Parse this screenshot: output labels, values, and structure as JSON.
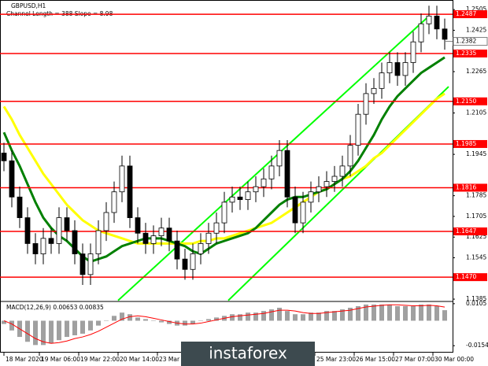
{
  "chart_data": [
    {
      "type": "candlestick",
      "title": "GBPUSD,H1",
      "subtitle": "Channel Length = 388 Slope = 8.98",
      "open": [
        1.195,
        1.192,
        1.178,
        1.17,
        1.16,
        1.156,
        1.162,
        1.16,
        1.17,
        1.165,
        1.156,
        1.148,
        1.156,
        1.165,
        1.172,
        1.18,
        1.19,
        1.17,
        1.164,
        1.16,
        1.163,
        1.166,
        1.161,
        1.154,
        1.15,
        1.156,
        1.16,
        1.164,
        1.168,
        1.176,
        1.178,
        1.177,
        1.18,
        1.182,
        1.185,
        1.19,
        1.196,
        1.178,
        1.168,
        1.176,
        1.18,
        1.182,
        1.184,
        1.186,
        1.19,
        1.198,
        1.21,
        1.218,
        1.22,
        1.226,
        1.23,
        1.225,
        1.23,
        1.238,
        1.245,
        1.248,
        1.243
      ],
      "high": [
        1.199,
        1.196,
        1.182,
        1.174,
        1.164,
        1.166,
        1.166,
        1.174,
        1.174,
        1.169,
        1.16,
        1.16,
        1.169,
        1.176,
        1.184,
        1.194,
        1.194,
        1.174,
        1.168,
        1.167,
        1.17,
        1.17,
        1.165,
        1.158,
        1.16,
        1.164,
        1.168,
        1.172,
        1.18,
        1.182,
        1.182,
        1.184,
        1.186,
        1.189,
        1.194,
        1.2,
        1.2,
        1.182,
        1.18,
        1.184,
        1.186,
        1.188,
        1.19,
        1.194,
        1.202,
        1.214,
        1.222,
        1.224,
        1.23,
        1.234,
        1.234,
        1.234,
        1.242,
        1.249,
        1.252,
        1.252,
        1.247
      ],
      "low": [
        1.188,
        1.174,
        1.166,
        1.156,
        1.152,
        1.152,
        1.156,
        1.156,
        1.161,
        1.152,
        1.144,
        1.144,
        1.152,
        1.161,
        1.168,
        1.176,
        1.166,
        1.16,
        1.156,
        1.156,
        1.159,
        1.157,
        1.15,
        1.146,
        1.146,
        1.152,
        1.156,
        1.16,
        1.164,
        1.172,
        1.173,
        1.173,
        1.176,
        1.178,
        1.181,
        1.186,
        1.174,
        1.164,
        1.164,
        1.172,
        1.176,
        1.178,
        1.18,
        1.182,
        1.186,
        1.194,
        1.206,
        1.214,
        1.216,
        1.222,
        1.221,
        1.221,
        1.226,
        1.234,
        1.241,
        1.239,
        1.235
      ],
      "close": [
        1.192,
        1.178,
        1.17,
        1.16,
        1.156,
        1.162,
        1.16,
        1.17,
        1.165,
        1.156,
        1.148,
        1.156,
        1.165,
        1.172,
        1.18,
        1.19,
        1.17,
        1.164,
        1.16,
        1.163,
        1.166,
        1.161,
        1.154,
        1.15,
        1.156,
        1.16,
        1.164,
        1.168,
        1.176,
        1.178,
        1.177,
        1.18,
        1.182,
        1.185,
        1.19,
        1.196,
        1.178,
        1.168,
        1.176,
        1.18,
        1.182,
        1.184,
        1.186,
        1.19,
        1.198,
        1.21,
        1.218,
        1.22,
        1.226,
        1.23,
        1.225,
        1.23,
        1.238,
        1.245,
        1.248,
        1.243,
        1.239
      ],
      "series": [
        {
          "color": "#ffff00",
          "values": [
            1.213,
            1.208,
            1.202,
            1.197,
            1.192,
            1.187,
            1.183,
            1.179,
            1.175,
            1.172,
            1.169,
            1.167,
            1.165,
            1.164,
            1.163,
            1.162,
            1.161,
            1.16,
            1.16,
            1.16,
            1.16,
            1.16,
            1.16,
            1.16,
            1.16,
            1.161,
            1.161,
            1.162,
            1.162,
            1.163,
            1.164,
            1.165,
            1.166,
            1.167,
            1.168,
            1.17,
            1.172,
            1.174,
            1.176,
            1.178,
            1.18,
            1.181,
            1.183,
            1.185,
            1.186,
            1.188,
            1.19,
            1.193,
            1.195,
            1.198,
            1.201,
            1.204,
            1.207,
            1.21,
            1.213,
            1.216,
            1.218
          ]
        },
        {
          "color": "#008000",
          "values": [
            1.203,
            1.196,
            1.19,
            1.183,
            1.176,
            1.17,
            1.166,
            1.163,
            1.161,
            1.158,
            1.155,
            1.153,
            1.154,
            1.155,
            1.157,
            1.159,
            1.16,
            1.161,
            1.162,
            1.162,
            1.162,
            1.161,
            1.16,
            1.159,
            1.157,
            1.156,
            1.158,
            1.16,
            1.161,
            1.162,
            1.163,
            1.164,
            1.166,
            1.169,
            1.172,
            1.175,
            1.177,
            1.178,
            1.178,
            1.179,
            1.18,
            1.181,
            1.183,
            1.185,
            1.188,
            1.192,
            1.197,
            1.202,
            1.208,
            1.213,
            1.217,
            1.22,
            1.223,
            1.226,
            1.228,
            1.23,
            1.232
          ]
        }
      ],
      "channels": [
        {
          "color": "#00ff00",
          "x": [
            14.5,
            54
          ],
          "y": [
            1.138,
            1.248
          ]
        },
        {
          "color": "#00ff00",
          "x": [
            28.5,
            56.5
          ],
          "y": [
            1.138,
            1.2207
          ]
        }
      ],
      "levels": [
        1.2487,
        1.2335,
        {
          "value": 1.215,
          "label": "1.2150"
        },
        1.1985,
        1.1816,
        1.1647,
        {
          "value": 1.147,
          "label": "1.1470"
        }
      ],
      "level_color": "#ff0000",
      "current_price": 1.2382,
      "ylim": [
        1.1376,
        1.2542
      ],
      "yticks": [
        1.2505,
        1.2425,
        1.2265,
        1.2105,
        1.1945,
        1.1785,
        1.1705,
        1.1625,
        1.1545,
        1.1385
      ],
      "xticks": [
        {
          "value": 0,
          "label": "18 Mar 2020"
        },
        {
          "value": 4.5,
          "label": "19 Mar 06:00"
        },
        {
          "value": 9.5,
          "label": "19 Mar 22:00"
        },
        {
          "value": 14.5,
          "label": "20 Mar 14:00"
        },
        {
          "value": 19.5,
          "label": "23 Mar 06:00"
        },
        {
          "value": 39.5,
          "label": "25 Mar 23:00"
        },
        {
          "value": 44.5,
          "label": "26 Mar 15:00"
        },
        {
          "value": 49.5,
          "label": "27 Mar 07:00"
        },
        {
          "value": 54.5,
          "label": "30 Mar 00:00"
        }
      ],
      "watermark": "instaforex"
    },
    {
      "type": "macd",
      "title": "MACD(12,26,9) 0.00653 0.00835",
      "histogram": {
        "color": "#a0a0a0",
        "values": [
          -0.002,
          -0.006,
          -0.01,
          -0.013,
          -0.015,
          -0.015,
          -0.014,
          -0.012,
          -0.01,
          -0.009,
          -0.008,
          -0.006,
          -0.003,
          0.0,
          0.003,
          0.005,
          0.004,
          0.002,
          0.001,
          0.0,
          -0.001,
          -0.002,
          -0.003,
          -0.003,
          -0.002,
          0.0,
          0.001,
          0.002,
          0.003,
          0.004,
          0.004,
          0.005,
          0.005,
          0.006,
          0.007,
          0.008,
          0.006,
          0.004,
          0.004,
          0.005,
          0.005,
          0.006,
          0.006,
          0.007,
          0.008,
          0.009,
          0.01,
          0.01,
          0.01,
          0.01,
          0.009,
          0.009,
          0.009,
          0.01,
          0.01,
          0.009,
          0.0065
        ]
      },
      "signal": {
        "color": "#ff0000",
        "values": [
          0.0,
          -0.002,
          -0.005,
          -0.008,
          -0.011,
          -0.013,
          -0.014,
          -0.0135,
          -0.0125,
          -0.011,
          -0.01,
          -0.0085,
          -0.0065,
          -0.004,
          -0.0015,
          0.001,
          0.0025,
          0.003,
          0.0025,
          0.0015,
          0.0005,
          -0.0005,
          -0.0015,
          -0.002,
          -0.002,
          -0.0015,
          -0.0005,
          0.0005,
          0.0015,
          0.0025,
          0.003,
          0.0035,
          0.004,
          0.0045,
          0.0055,
          0.0065,
          0.0065,
          0.006,
          0.005,
          0.0045,
          0.0045,
          0.005,
          0.0055,
          0.006,
          0.0065,
          0.0075,
          0.0085,
          0.009,
          0.0095,
          0.0098,
          0.0098,
          0.0095,
          0.0092,
          0.0092,
          0.0095,
          0.0092,
          0.0084
        ]
      },
      "ylim": [
        -0.0192,
        0.0114
      ],
      "yticks": [
        0.0105,
        -0.0154
      ]
    }
  ]
}
